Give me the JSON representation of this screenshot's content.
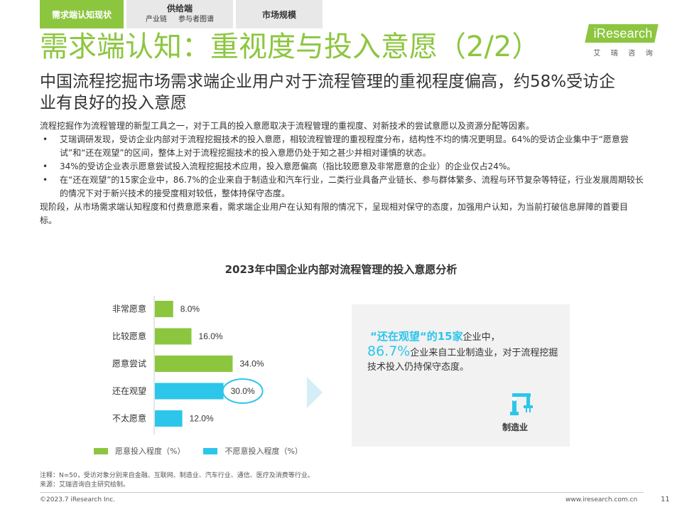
{
  "tabs": [
    {
      "label": "需求端认知现状",
      "active": true
    },
    {
      "label": "供给端",
      "subs": [
        "产业链",
        "参与者图谱"
      ]
    },
    {
      "label": "市场规模"
    }
  ],
  "logo": {
    "text": "iResearch",
    "sub": [
      "艾",
      "瑞",
      "咨",
      "询"
    ]
  },
  "title": "需求端认知：重视度与投入意愿（2/2）",
  "subtitle": "中国流程挖掘市场需求端企业用户对于流程管理的重视程度偏高，约58%受访企业有良好的投入意愿",
  "body": {
    "intro": "流程挖掘作为流程管理的新型工具之一，对于工具的投入意愿取决于流程管理的重视度、对新技术的尝试意愿以及资源分配等因素。",
    "bullets": [
      "艾瑞调研发现，受访企业内部对于流程挖掘技术的投入意愿，相较流程管理的重视程度分布，结构性不均的情况更明显。64%的受访企业集中于“愿意尝试”和“还在观望”的区间，整体上对于流程挖掘技术的投入意愿仍处于知之甚少并相对谨慎的状态。",
      "34%的受访企业表示愿意尝试投入流程挖掘技术应用，投入意愿偏高（指比较愿意及非常愿意的企业）的企业仅占24%。",
      "在“还在观望”的15家企业中，86.7%的企业来自于制造业和汽车行业，二类行业具备产业链长、参与群体繁多、流程与环节复杂等特征，行业发展周期较长的情况下对于新兴技术的接受度相对较低，整体持保守态度。"
    ],
    "conclusion": "现阶段，从市场需求端认知程度和付费意愿来看，需求端企业用户在认知有限的情况下，呈现相对保守的态度，加强用户认知，为当前打破信息屏障的首要目标。"
  },
  "chart_data": {
    "type": "bar",
    "orientation": "horizontal",
    "title": "2023年中国企业内部对流程管理的投入意愿分析",
    "categories": [
      "非常愿意",
      "比较愿意",
      "愿意尝试",
      "还在观望",
      "不太愿意"
    ],
    "values": [
      8.0,
      16.0,
      34.0,
      30.0,
      12.0
    ],
    "value_labels": [
      "8.0%",
      "16.0%",
      "34.0%",
      "30.0%",
      "12.0%"
    ],
    "groups": [
      "willing",
      "willing",
      "willing",
      "unwilling",
      "unwilling"
    ],
    "series": [
      {
        "name": "愿意投入程度（%）",
        "color": "#8cc63f"
      },
      {
        "name": "不愿意投入程度（%）",
        "color": "#2cc6ea"
      }
    ],
    "highlight_index": 3,
    "legend": "bottom"
  },
  "callout": {
    "highlight": "“还在观望“的15家",
    "line1_rest": "企业中，",
    "pct": "86.7%",
    "line2": "企业来自工业制造业，对于流程挖掘技术投入仍持保守态度。",
    "icon": "manufacturing-robot-arm-icon",
    "icon_label": "制造业"
  },
  "footer": {
    "note": "注释：N=50，受访对象分别来自金融、互联网、制造业、汽车行业、通信、医疗及消费等行业。",
    "source": "来源：艾瑞咨询自主研究绘制。",
    "copyright": "©2023.7 iResearch Inc.",
    "website": "www.iresearch.com.cn",
    "page": "11"
  },
  "colors": {
    "accent_green": "#8cc63f",
    "accent_blue": "#2cc6ea"
  }
}
